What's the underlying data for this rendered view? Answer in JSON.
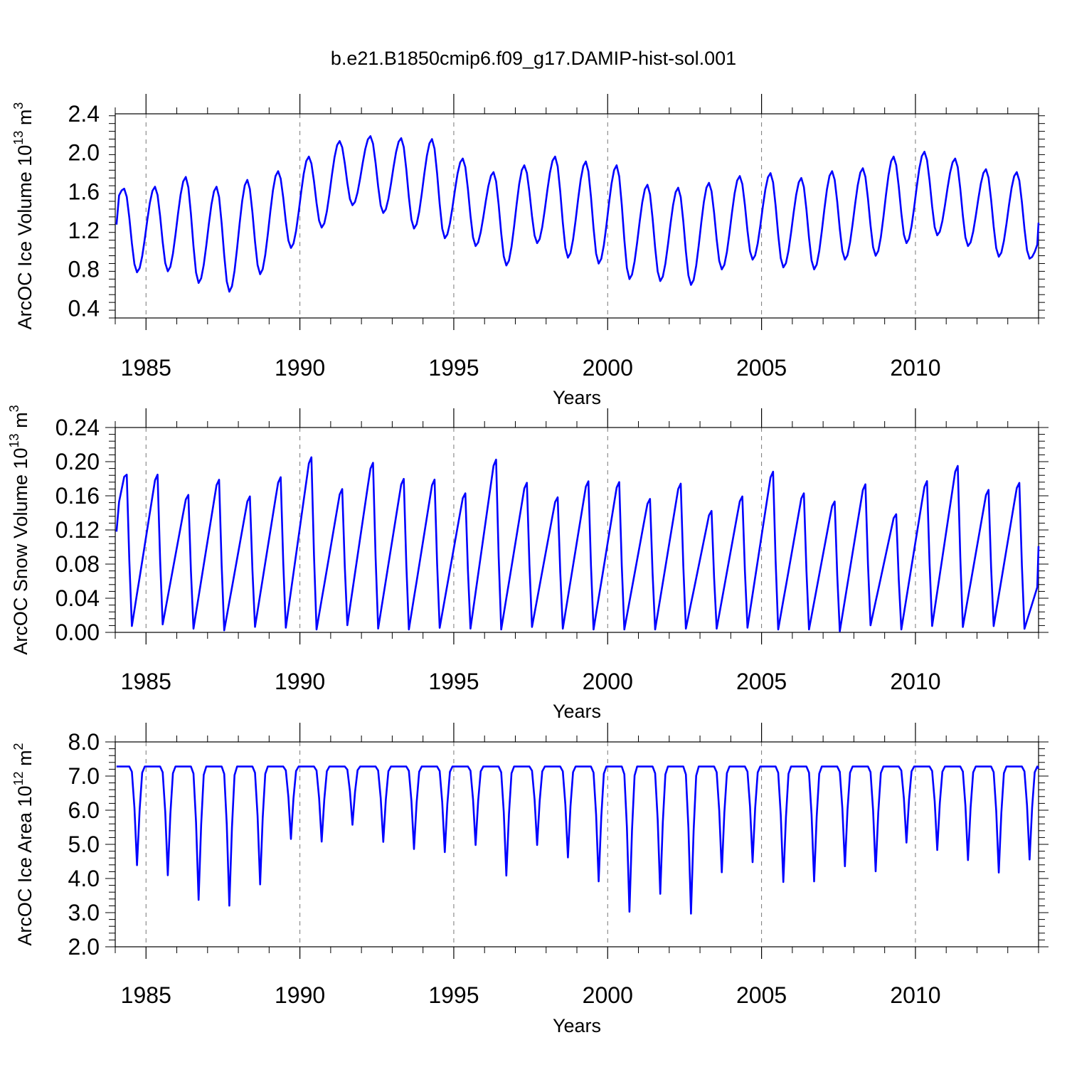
{
  "figure_title": "b.e21.B1850cmip6.f09_g17.DAMIP-hist-sol.001",
  "chart_data": [
    {
      "type": "line",
      "id": "ice-volume",
      "ylabel_main": "ArcOC Ice Volume 10",
      "ylabel_exp": "13",
      "ylabel_unit": " m",
      "ylabel_unit_exp": "3",
      "xlabel": "Years",
      "xlim": [
        1984.0,
        2014.0
      ],
      "ylim": [
        0.3,
        2.4
      ],
      "yticks": [
        0.4,
        0.8,
        1.2,
        1.6,
        2.0,
        2.4
      ],
      "ytick_labels": [
        "0.4",
        "0.8",
        "1.2",
        "1.6",
        "2.0",
        "2.4"
      ],
      "xticks": [
        1985,
        1990,
        1995,
        2000,
        2005,
        2010
      ],
      "xtick_labels": [
        "1985",
        "1990",
        "1995",
        "2000",
        "2005",
        "2010"
      ],
      "line_color": "#0000ff",
      "series_name": "Ice Volume",
      "annual_max": [
        1.63,
        1.65,
        1.75,
        1.65,
        1.72,
        1.81,
        1.96,
        2.12,
        2.17,
        2.15,
        2.14,
        1.94,
        1.8,
        1.87,
        1.96,
        1.91,
        1.87,
        1.67,
        1.64,
        1.69,
        1.76,
        1.79,
        1.74,
        1.81,
        1.84,
        1.96,
        2.01,
        1.94,
        1.83,
        1.8
      ],
      "annual_min": [
        0.77,
        0.78,
        0.66,
        0.57,
        0.75,
        1.02,
        1.23,
        1.46,
        1.38,
        1.22,
        1.12,
        1.04,
        0.84,
        1.07,
        0.92,
        0.86,
        0.7,
        0.68,
        0.64,
        0.8,
        0.9,
        0.82,
        0.8,
        0.9,
        0.94,
        1.07,
        1.15,
        1.04,
        0.93,
        0.91
      ],
      "start_value": 1.26,
      "end_value": 1.28
    },
    {
      "type": "line",
      "id": "snow-volume",
      "ylabel_main": "ArcOC Snow Volume 10",
      "ylabel_exp": "13",
      "ylabel_unit": " m",
      "ylabel_unit_exp": "3",
      "xlabel": "Years",
      "xlim": [
        1984.0,
        2014.0
      ],
      "ylim": [
        0.0,
        0.24
      ],
      "yticks": [
        0.0,
        0.04,
        0.08,
        0.12,
        0.16,
        0.2,
        0.24
      ],
      "ytick_labels": [
        "0.00",
        "0.04",
        "0.08",
        "0.12",
        "0.16",
        "0.20",
        "0.24"
      ],
      "xticks": [
        1985,
        1990,
        1995,
        2000,
        2005,
        2010
      ],
      "xtick_labels": [
        "1985",
        "1990",
        "1995",
        "2000",
        "2005",
        "2010"
      ],
      "line_color": "#0000ff",
      "series_name": "Snow Volume",
      "annual_max": [
        0.196,
        0.196,
        0.171,
        0.19,
        0.169,
        0.193,
        0.218,
        0.178,
        0.211,
        0.191,
        0.19,
        0.173,
        0.215,
        0.186,
        0.168,
        0.188,
        0.187,
        0.166,
        0.185,
        0.151,
        0.169,
        0.2,
        0.173,
        0.163,
        0.184,
        0.147,
        0.188,
        0.207,
        0.177,
        0.186
      ],
      "annual_min": [
        0.007,
        0.009,
        0.004,
        0.002,
        0.006,
        0.005,
        0.003,
        0.008,
        0.004,
        0.003,
        0.005,
        0.004,
        0.003,
        0.006,
        0.004,
        0.003,
        0.003,
        0.003,
        0.004,
        0.004,
        0.005,
        0.003,
        0.003,
        0.001,
        0.008,
        0.003,
        0.007,
        0.006,
        0.007,
        0.004
      ],
      "start_value": 0.118,
      "end_value": 0.101
    },
    {
      "type": "line",
      "id": "ice-area",
      "ylabel_main": "ArcOC Ice Area 10",
      "ylabel_exp": "12",
      "ylabel_unit": " m",
      "ylabel_unit_exp": "2",
      "xlabel": "Years",
      "xlim": [
        1984.0,
        2014.0
      ],
      "ylim": [
        2.0,
        8.0
      ],
      "yticks": [
        2.0,
        3.0,
        4.0,
        5.0,
        6.0,
        7.0,
        8.0
      ],
      "ytick_labels": [
        "2.0",
        "3.0",
        "4.0",
        "5.0",
        "6.0",
        "7.0",
        "8.0"
      ],
      "xticks": [
        1985,
        1990,
        1995,
        2000,
        2005,
        2010
      ],
      "xtick_labels": [
        "1985",
        "1990",
        "1995",
        "2000",
        "2005",
        "2010"
      ],
      "line_color": "#0000ff",
      "series_name": "Ice Area",
      "annual_max": [
        7.28,
        7.28,
        7.28,
        7.28,
        7.28,
        7.28,
        7.28,
        7.28,
        7.28,
        7.28,
        7.28,
        7.28,
        7.28,
        7.28,
        7.28,
        7.28,
        7.28,
        7.28,
        7.28,
        7.28,
        7.28,
        7.28,
        7.28,
        7.28,
        7.28,
        7.28,
        7.28,
        7.28,
        7.28,
        7.28
      ],
      "annual_min": [
        4.35,
        4.05,
        3.32,
        3.15,
        3.78,
        5.13,
        5.05,
        5.55,
        5.04,
        4.83,
        4.74,
        4.95,
        4.04,
        4.95,
        4.58,
        3.87,
        2.97,
        3.5,
        2.91,
        4.14,
        4.44,
        3.85,
        3.87,
        4.32,
        4.17,
        5.02,
        4.8,
        4.5,
        4.13,
        4.52
      ],
      "start_value": 7.28,
      "end_value": 7.22
    }
  ]
}
